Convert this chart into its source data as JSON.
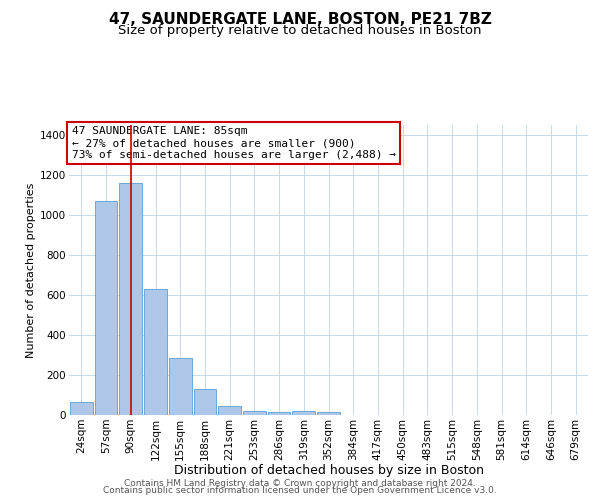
{
  "title": "47, SAUNDERGATE LANE, BOSTON, PE21 7BZ",
  "subtitle": "Size of property relative to detached houses in Boston",
  "xlabel": "Distribution of detached houses by size in Boston",
  "ylabel": "Number of detached properties",
  "bar_labels": [
    "24sqm",
    "57sqm",
    "90sqm",
    "122sqm",
    "155sqm",
    "188sqm",
    "221sqm",
    "253sqm",
    "286sqm",
    "319sqm",
    "352sqm",
    "384sqm",
    "417sqm",
    "450sqm",
    "483sqm",
    "515sqm",
    "548sqm",
    "581sqm",
    "614sqm",
    "646sqm",
    "679sqm"
  ],
  "bar_values": [
    65,
    1070,
    1160,
    630,
    285,
    130,
    45,
    20,
    15,
    20,
    15,
    0,
    0,
    0,
    0,
    0,
    0,
    0,
    0,
    0,
    0
  ],
  "bar_color": "#aec6e8",
  "bar_edgecolor": "#5a9fd4",
  "red_line_index": 2,
  "red_line_color": "#cc0000",
  "annotation_line1": "47 SAUNDERGATE LANE: 85sqm",
  "annotation_line2": "← 27% of detached houses are smaller (900)",
  "annotation_line3": "73% of semi-detached houses are larger (2,488) →",
  "annotation_box_edgecolor": "#cc0000",
  "annotation_box_facecolor": "#ffffff",
  "ylim": [
    0,
    1450
  ],
  "yticks": [
    0,
    200,
    400,
    600,
    800,
    1000,
    1200,
    1400
  ],
  "background_color": "#ffffff",
  "grid_color": "#c8d8ea",
  "footer_line1": "Contains HM Land Registry data © Crown copyright and database right 2024.",
  "footer_line2": "Contains public sector information licensed under the Open Government Licence v3.0.",
  "title_fontsize": 11,
  "subtitle_fontsize": 9.5,
  "xlabel_fontsize": 9,
  "ylabel_fontsize": 8,
  "tick_fontsize": 7.5,
  "annotation_fontsize": 8,
  "footer_fontsize": 6.5
}
